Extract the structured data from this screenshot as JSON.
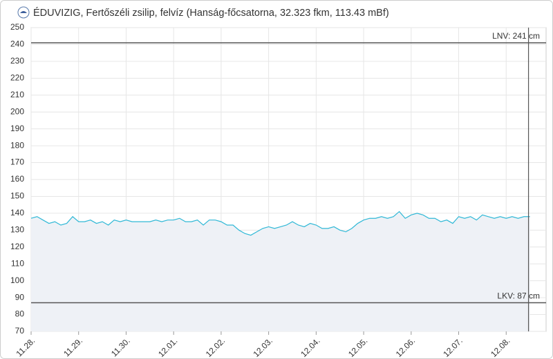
{
  "chart_data": {
    "type": "area-line",
    "title": "ÉDUVIZIG, Fertőszéli zsilip, felvíz (Hanság-főcsatorna, 32.323 fkm, 113.43 mBf)",
    "x": [
      0,
      0.125,
      0.25,
      0.375,
      0.5,
      0.625,
      0.75,
      0.875,
      1,
      1.125,
      1.25,
      1.375,
      1.5,
      1.625,
      1.75,
      1.875,
      2,
      2.125,
      2.25,
      2.375,
      2.5,
      2.625,
      2.75,
      2.875,
      3,
      3.125,
      3.25,
      3.375,
      3.5,
      3.625,
      3.75,
      3.875,
      4,
      4.125,
      4.25,
      4.375,
      4.5,
      4.625,
      4.75,
      4.875,
      5,
      5.125,
      5.25,
      5.375,
      5.5,
      5.625,
      5.75,
      5.875,
      6,
      6.125,
      6.25,
      6.375,
      6.5,
      6.625,
      6.75,
      6.875,
      7,
      7.125,
      7.25,
      7.375,
      7.5,
      7.625,
      7.75,
      7.875,
      8,
      8.125,
      8.25,
      8.375,
      8.5,
      8.625,
      8.75,
      8.875,
      9,
      9.125,
      9.25,
      9.375,
      9.5,
      9.625,
      9.75,
      9.875,
      10,
      10.125,
      10.25,
      10.375,
      10.5
    ],
    "series": [
      {
        "color": "#2fb8d6",
        "values": [
          137,
          138,
          136,
          134,
          135,
          133,
          134,
          138,
          135,
          135,
          136,
          134,
          135,
          133,
          136,
          135,
          136,
          135,
          135,
          135,
          135,
          136,
          135,
          136,
          136,
          137,
          135,
          135,
          136,
          133,
          136,
          136,
          135,
          133,
          133,
          130,
          128,
          127,
          129,
          131,
          132,
          131,
          132,
          133,
          135,
          133,
          132,
          134,
          133,
          131,
          131,
          132,
          130,
          129,
          131,
          134,
          136,
          137,
          137,
          138,
          137,
          138,
          141,
          137,
          139,
          140,
          139,
          137,
          137,
          135,
          136,
          134,
          138,
          137,
          138,
          136,
          139,
          138,
          137,
          138,
          137,
          138,
          137,
          138,
          138
        ]
      }
    ],
    "xlim": [
      0,
      10.84
    ],
    "xticks": [
      {
        "value": 0,
        "label": "11.28."
      },
      {
        "value": 1,
        "label": "11.29."
      },
      {
        "value": 2,
        "label": "11.30."
      },
      {
        "value": 3,
        "label": "12.01."
      },
      {
        "value": 4,
        "label": "12.02."
      },
      {
        "value": 5,
        "label": "12.03."
      },
      {
        "value": 6,
        "label": "12.04."
      },
      {
        "value": 7,
        "label": "12.05."
      },
      {
        "value": 8,
        "label": "12.06."
      },
      {
        "value": 9,
        "label": "12.07."
      },
      {
        "value": 10,
        "label": "12.08."
      }
    ],
    "ylim": [
      70,
      250
    ],
    "yticks": [
      70,
      80,
      90,
      100,
      110,
      120,
      130,
      140,
      150,
      160,
      170,
      180,
      190,
      200,
      210,
      220,
      230,
      240,
      250
    ],
    "grid": true,
    "fill_color": "#eef1f6",
    "vline": 10.47,
    "reference_lines": [
      {
        "label": "LNV: 241 cm",
        "value": 241
      },
      {
        "label": "LKV: 87 cm",
        "value": 87
      }
    ]
  }
}
